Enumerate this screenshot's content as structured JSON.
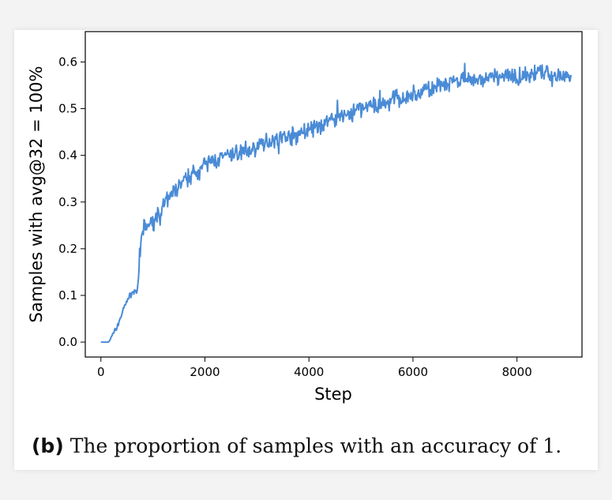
{
  "chart_data": {
    "type": "line",
    "xlabel": "Step",
    "ylabel": "Samples with avg@32 = 100%",
    "xlim": [
      -300,
      9250
    ],
    "ylim": [
      -0.032,
      0.665
    ],
    "x_ticks": [
      0,
      2000,
      4000,
      6000,
      8000
    ],
    "y_ticks": [
      0.0,
      0.1,
      0.2,
      0.3,
      0.4,
      0.5,
      0.6
    ],
    "x_tick_labels": [
      "0",
      "2000",
      "4000",
      "6000",
      "8000"
    ],
    "y_tick_labels": [
      "0.0",
      "0.1",
      "0.2",
      "0.3",
      "0.4",
      "0.5",
      "0.6"
    ],
    "grid": false,
    "series": [
      {
        "color": "#4a8bd6",
        "x": [
          0,
          150,
          200,
          300,
          400,
          500,
          600,
          700,
          750,
          780,
          800,
          850,
          900,
          1000,
          1200,
          1400,
          1600,
          1800,
          2000,
          2200,
          2400,
          2600,
          2800,
          3000,
          3200,
          3400,
          3600,
          3800,
          4000,
          4200,
          4400,
          4600,
          4800,
          5000,
          5200,
          5400,
          5600,
          5800,
          6000,
          6200,
          6400,
          6600,
          6800,
          7000,
          7200,
          7400,
          7600,
          7800,
          8000,
          8200,
          8400,
          8600,
          8800,
          9000,
          9050
        ],
        "y": [
          0.0,
          0.0,
          0.01,
          0.03,
          0.06,
          0.09,
          0.105,
          0.11,
          0.17,
          0.23,
          0.235,
          0.245,
          0.25,
          0.255,
          0.29,
          0.32,
          0.345,
          0.365,
          0.38,
          0.39,
          0.395,
          0.405,
          0.41,
          0.415,
          0.43,
          0.435,
          0.44,
          0.445,
          0.455,
          0.46,
          0.475,
          0.485,
          0.49,
          0.5,
          0.505,
          0.51,
          0.52,
          0.525,
          0.53,
          0.535,
          0.545,
          0.55,
          0.555,
          0.56,
          0.56,
          0.565,
          0.565,
          0.57,
          0.57,
          0.575,
          0.575,
          0.575,
          0.575,
          0.57,
          0.565
        ]
      }
    ]
  },
  "caption": {
    "tag": "(b)",
    "text": "The proportion of samples with an accuracy of 1."
  }
}
